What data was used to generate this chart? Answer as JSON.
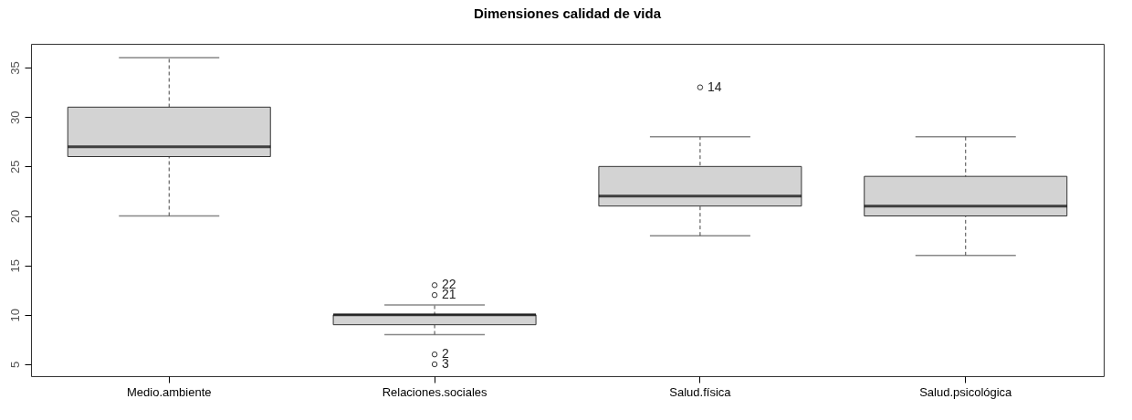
{
  "chart_data": {
    "type": "box",
    "title": "Dimensiones calidad de vida",
    "categories": [
      "Medio.ambiente",
      "Relaciones.sociales",
      "Salud.física",
      "Salud.psicológica"
    ],
    "boxes": [
      {
        "low": 20,
        "q1": 26,
        "median": 27,
        "q3": 31,
        "high": 36
      },
      {
        "low": 8,
        "q1": 9,
        "median": 10,
        "q3": 10,
        "high": 11,
        "outliers": [
          13,
          12,
          6,
          5
        ]
      },
      {
        "low": 18,
        "q1": 21,
        "median": 22,
        "q3": 25,
        "high": 28,
        "outliers": [
          33
        ]
      },
      {
        "low": 16,
        "q1": 20,
        "median": 21,
        "q3": 24,
        "high": 28
      }
    ],
    "color": "#d3d3d3",
    "ylim": [
      3.8,
      37.4
    ],
    "yticks": [
      5,
      10,
      15,
      20,
      25,
      30,
      35
    ],
    "grid": false,
    "annotations": [
      "22",
      "21",
      "2",
      "3",
      "14"
    ]
  }
}
